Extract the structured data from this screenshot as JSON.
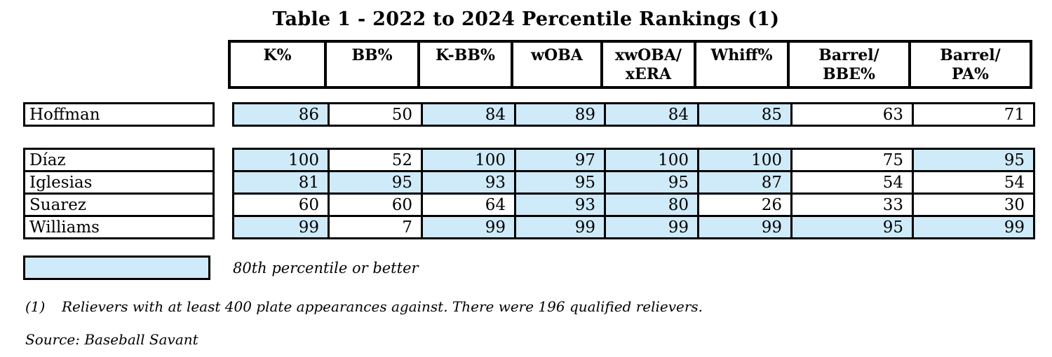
{
  "title": "Table 1 - 2022 to 2024 Percentile Rankings (1)",
  "highlight_color": "#cfeaf8",
  "columns": [
    "K%",
    "BB%",
    "K-BB%",
    "wOBA",
    "xwOBA/\nxERA",
    "Whiff%",
    "Barrel/\nBBE%",
    "Barrel/\nPA%"
  ],
  "single_rows": [
    {
      "name": "Hoffman",
      "values": [
        86,
        50,
        84,
        89,
        84,
        85,
        63,
        71
      ],
      "highlight": [
        true,
        false,
        true,
        true,
        true,
        true,
        false,
        false
      ]
    }
  ],
  "group_rows": [
    {
      "name": "Díaz",
      "values": [
        100,
        52,
        100,
        97,
        100,
        100,
        75,
        95
      ],
      "highlight": [
        true,
        false,
        true,
        true,
        true,
        true,
        false,
        true
      ]
    },
    {
      "name": "Iglesias",
      "values": [
        81,
        95,
        93,
        95,
        95,
        87,
        54,
        54
      ],
      "highlight": [
        true,
        true,
        true,
        true,
        true,
        true,
        false,
        false
      ]
    },
    {
      "name": "Suarez",
      "values": [
        60,
        60,
        64,
        93,
        80,
        26,
        33,
        30
      ],
      "highlight": [
        false,
        false,
        false,
        true,
        true,
        false,
        false,
        false
      ]
    },
    {
      "name": "Williams",
      "values": [
        99,
        7,
        99,
        99,
        99,
        99,
        95,
        99
      ],
      "highlight": [
        true,
        false,
        true,
        true,
        true,
        true,
        true,
        true
      ]
    }
  ],
  "legend": {
    "label": "80th percentile or better"
  },
  "footnote": {
    "marker": "(1)",
    "text": "Relievers with at least 400 plate appearances against. There were 196 qualified relievers."
  },
  "source": "Source: Baseball Savant"
}
